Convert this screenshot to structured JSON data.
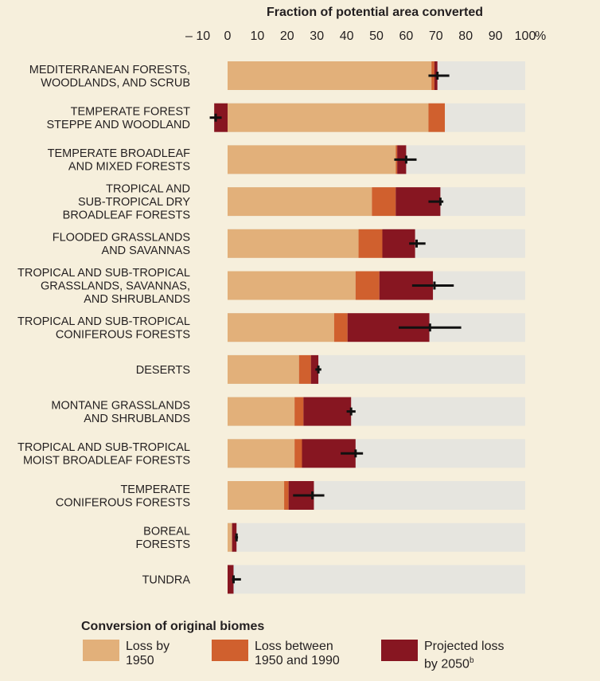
{
  "chart_data": {
    "type": "bar",
    "orientation": "horizontal",
    "stacked": true,
    "title": "Fraction of potential area converted",
    "x_ticks": [
      "– 10",
      "0",
      "10",
      "20",
      "30",
      "40",
      "50",
      "60",
      "70",
      "80",
      "90",
      "100"
    ],
    "x_unit": "%",
    "xlim": [
      -10,
      100
    ],
    "categories": [
      "MEDITERRANEAN FORESTS,\nWOODLANDS, AND SCRUB",
      "TEMPERATE FOREST\nSTEPPE AND WOODLAND",
      "TEMPERATE BROADLEAF\nAND MIXED FORESTS",
      "TROPICAL AND\nSUB-TROPICAL DRY\nBROADLEAF FORESTS",
      "FLOODED GRASSLANDS\nAND SAVANNAS",
      "TROPICAL AND SUB-TROPICAL\nGRASSLANDS, SAVANNAS,\nAND SHRUBLANDS",
      "TROPICAL AND SUB-TROPICAL\nCONIFEROUS FORESTS",
      "DESERTS",
      "MONTANE GRASSLANDS\nAND SHRUBLANDS",
      "TROPICAL AND SUB-TROPICAL\nMOIST BROADLEAF FORESTS",
      "TEMPERATE\nCONIFEROUS FORESTS",
      "BOREAL\nFORESTS",
      "TUNDRA"
    ],
    "series": [
      {
        "name": "Loss by 1950",
        "color": "#e2b07a",
        "values": [
          68.5,
          67.5,
          56.5,
          48.5,
          44,
          43,
          35.8,
          24,
          22.5,
          22.5,
          19,
          1.5,
          0
        ]
      },
      {
        "name": "Loss between 1950 and 1990",
        "color": "#d0602e",
        "values": [
          1,
          5.5,
          0.5,
          8,
          8,
          8,
          4.5,
          4,
          3,
          2.5,
          1.5,
          0,
          0
        ]
      },
      {
        "name": "Projected loss by 2050",
        "color": "#871621",
        "values": [
          1,
          -4.5,
          3,
          15,
          11,
          18,
          27.5,
          2.5,
          16,
          18,
          8.5,
          1.5,
          2
        ]
      }
    ],
    "error_bars": [
      {
        "center": 70.5,
        "low": 67.5,
        "high": 74.5
      },
      {
        "center": -4,
        "low": -6,
        "high": -2
      },
      {
        "center": 60,
        "low": 56,
        "high": 63.5
      },
      {
        "center": 71.5,
        "low": 67.5,
        "high": 72.5
      },
      {
        "center": 63.5,
        "low": 61,
        "high": 66.5
      },
      {
        "center": 69.5,
        "low": 62,
        "high": 76
      },
      {
        "center": 68,
        "low": 57.5,
        "high": 78.5
      },
      {
        "center": 30.5,
        "low": 29.5,
        "high": 31.5
      },
      {
        "center": 41.5,
        "low": 40,
        "high": 43
      },
      {
        "center": 43,
        "low": 38,
        "high": 45.5
      },
      {
        "center": 28.5,
        "low": 22,
        "high": 32.5
      },
      {
        "center": 3,
        "low": 2.5,
        "high": 3.5
      },
      {
        "center": 2,
        "low": 1.5,
        "high": 4.5
      }
    ],
    "legend": {
      "title": "Conversion of original biomes",
      "placement": "bottom",
      "items": [
        {
          "label": "Loss by\n1950",
          "color": "#e2b07a"
        },
        {
          "label": "Loss between\n1950 and 1990",
          "color": "#d0602e"
        },
        {
          "label": "Projected loss\nby 2050",
          "sup": "b",
          "color": "#871621"
        }
      ]
    },
    "colors": {
      "background": "#f6efdc",
      "track": "#e6e5df",
      "track_edge": "#dde6e3",
      "error_bar": "#111111"
    }
  }
}
